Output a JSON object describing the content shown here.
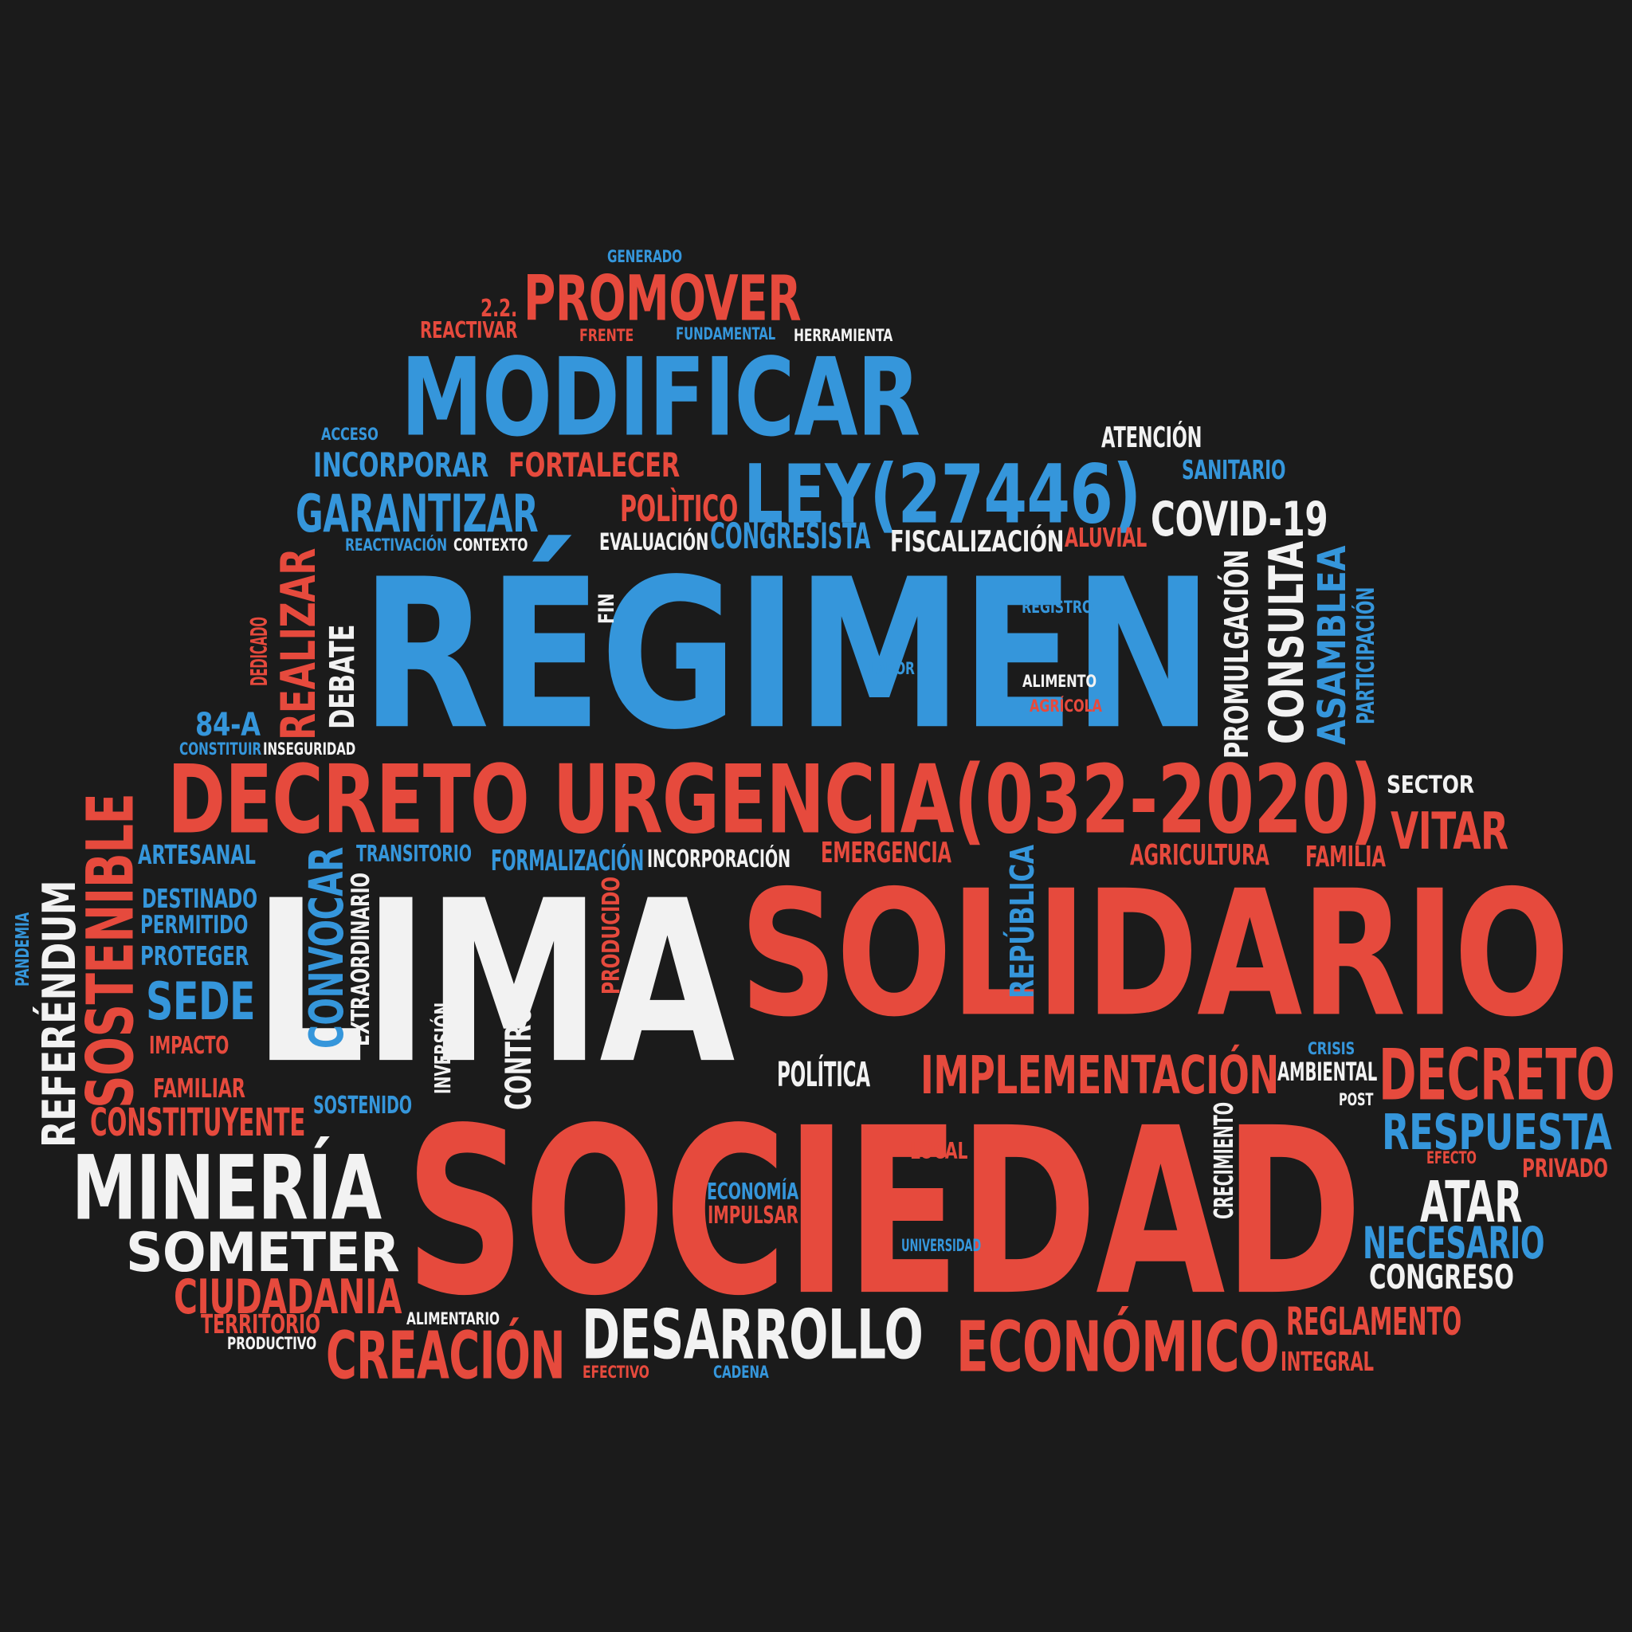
{
  "colors": {
    "background": "#1b1b1b",
    "red": "#e64a3d",
    "blue": "#3596db",
    "white": "#f2f2f2"
  },
  "words": [
    {
      "text": "GENERADO",
      "color": "blue"
    },
    {
      "text": "2.2.",
      "color": "red"
    },
    {
      "text": "PROMOVER",
      "color": "red"
    },
    {
      "text": "REACTIVAR",
      "color": "red"
    },
    {
      "text": "FRENTE",
      "color": "red"
    },
    {
      "text": "FUNDAMENTAL",
      "color": "blue"
    },
    {
      "text": "HERRAMIENTA",
      "color": "white"
    },
    {
      "text": "MODIFICAR",
      "color": "blue"
    },
    {
      "text": "ACCESO",
      "color": "blue"
    },
    {
      "text": "ATENCIÓN",
      "color": "white"
    },
    {
      "text": "INCORPORAR",
      "color": "blue"
    },
    {
      "text": "FORTALECER",
      "color": "red"
    },
    {
      "text": "LEY(27446)",
      "color": "blue"
    },
    {
      "text": "SANITARIO",
      "color": "blue"
    },
    {
      "text": "GARANTIZAR",
      "color": "blue"
    },
    {
      "text": "POLÌTICO",
      "color": "red"
    },
    {
      "text": "COVID-19",
      "color": "white"
    },
    {
      "text": "REACTIVACIÓN",
      "color": "blue"
    },
    {
      "text": "CONTEXTO",
      "color": "white"
    },
    {
      "text": "EVALUACIÓN",
      "color": "white"
    },
    {
      "text": "CONGRESISTA",
      "color": "blue"
    },
    {
      "text": "FISCALIZACIÓN",
      "color": "white"
    },
    {
      "text": "ALUVIAL",
      "color": "red"
    },
    {
      "text": "RÉGIMEN",
      "color": "blue"
    },
    {
      "text": "FIN",
      "color": "white"
    },
    {
      "text": "REGISTRO",
      "color": "blue"
    },
    {
      "text": "LABOR",
      "color": "blue"
    },
    {
      "text": "ALIMENTO",
      "color": "white"
    },
    {
      "text": "AGRÍCOLA",
      "color": "red"
    },
    {
      "text": "PROMULGACIÓN",
      "color": "white"
    },
    {
      "text": "CONSULTA",
      "color": "white"
    },
    {
      "text": "ASAMBLEA",
      "color": "blue"
    },
    {
      "text": "PARTICIPACIÓN",
      "color": "blue"
    },
    {
      "text": "REALIZAR",
      "color": "red"
    },
    {
      "text": "DEDICADO",
      "color": "red"
    },
    {
      "text": "DEBATE",
      "color": "white"
    },
    {
      "text": "84-A",
      "color": "blue"
    },
    {
      "text": "CONSTITUIR",
      "color": "blue"
    },
    {
      "text": "INSEGURIDAD",
      "color": "white"
    },
    {
      "text": "DECRETO URGENCIA(032-2020)",
      "color": "red"
    },
    {
      "text": "SECTOR",
      "color": "white"
    },
    {
      "text": "VITAR",
      "color": "red"
    },
    {
      "text": "SOSTENIBLE",
      "color": "red"
    },
    {
      "text": "ARTESANAL",
      "color": "blue"
    },
    {
      "text": "TRANSITORIO",
      "color": "blue"
    },
    {
      "text": "FORMALIZACIÓN",
      "color": "blue"
    },
    {
      "text": "INCORPORACIÓN",
      "color": "white"
    },
    {
      "text": "EMERGENCIA",
      "color": "red"
    },
    {
      "text": "AGRICULTURA",
      "color": "red"
    },
    {
      "text": "FAMILIA",
      "color": "red"
    },
    {
      "text": "LIMA",
      "color": "white"
    },
    {
      "text": "SOLIDARIO",
      "color": "red"
    },
    {
      "text": "REFERÉNDUM",
      "color": "white"
    },
    {
      "text": "PANDEMIA",
      "color": "blue"
    },
    {
      "text": "DESTINADO",
      "color": "blue"
    },
    {
      "text": "PERMITIDO",
      "color": "blue"
    },
    {
      "text": "PROTEGER",
      "color": "blue"
    },
    {
      "text": "SEDE",
      "color": "blue"
    },
    {
      "text": "IMPACTO",
      "color": "red"
    },
    {
      "text": "FAMILIAR",
      "color": "red"
    },
    {
      "text": "CONVOCAR",
      "color": "blue"
    },
    {
      "text": "EXTRAORDINARIO",
      "color": "white"
    },
    {
      "text": "PRODUCIDO",
      "color": "red"
    },
    {
      "text": "REPÚBLICA",
      "color": "blue"
    },
    {
      "text": "INVERSIÓN",
      "color": "white"
    },
    {
      "text": "CONTROL",
      "color": "white"
    },
    {
      "text": "SOSTENIDO",
      "color": "blue"
    },
    {
      "text": "POLÍTICA",
      "color": "white"
    },
    {
      "text": "IMPLEMENTACIÓN",
      "color": "red"
    },
    {
      "text": "CRISIS",
      "color": "blue"
    },
    {
      "text": "AMBIENTAL",
      "color": "white"
    },
    {
      "text": "DECRETO",
      "color": "red"
    },
    {
      "text": "POST",
      "color": "white"
    },
    {
      "text": "CONSTITUYENTE",
      "color": "red"
    },
    {
      "text": "SOCIEDAD",
      "color": "red"
    },
    {
      "text": "CRECIMIENTO",
      "color": "white"
    },
    {
      "text": "RESPUESTA",
      "color": "blue"
    },
    {
      "text": "EFECTO",
      "color": "red"
    },
    {
      "text": "PRIVADO",
      "color": "red"
    },
    {
      "text": "MINERÍA",
      "color": "white"
    },
    {
      "text": "LOCAL",
      "color": "red"
    },
    {
      "text": "ECONOMÍA",
      "color": "blue"
    },
    {
      "text": "IMPULSAR",
      "color": "red"
    },
    {
      "text": "ATAR",
      "color": "white"
    },
    {
      "text": "SOMETER",
      "color": "white"
    },
    {
      "text": "UNIVERSIDAD",
      "color": "blue"
    },
    {
      "text": "NECESARIO",
      "color": "blue"
    },
    {
      "text": "CONGRESO",
      "color": "white"
    },
    {
      "text": "CIUDADANIA",
      "color": "red"
    },
    {
      "text": "ALIMENTARIO",
      "color": "white"
    },
    {
      "text": "REGLAMENTO",
      "color": "red"
    },
    {
      "text": "TERRITORIO",
      "color": "red"
    },
    {
      "text": "PRODUCTIVO",
      "color": "white"
    },
    {
      "text": "CREACIÓN",
      "color": "red"
    },
    {
      "text": "DESARROLLO",
      "color": "white"
    },
    {
      "text": "ECONÓMICO",
      "color": "red"
    },
    {
      "text": "INTEGRAL",
      "color": "red"
    },
    {
      "text": "EFECTIVO",
      "color": "red"
    },
    {
      "text": "CADENA",
      "color": "blue"
    }
  ]
}
